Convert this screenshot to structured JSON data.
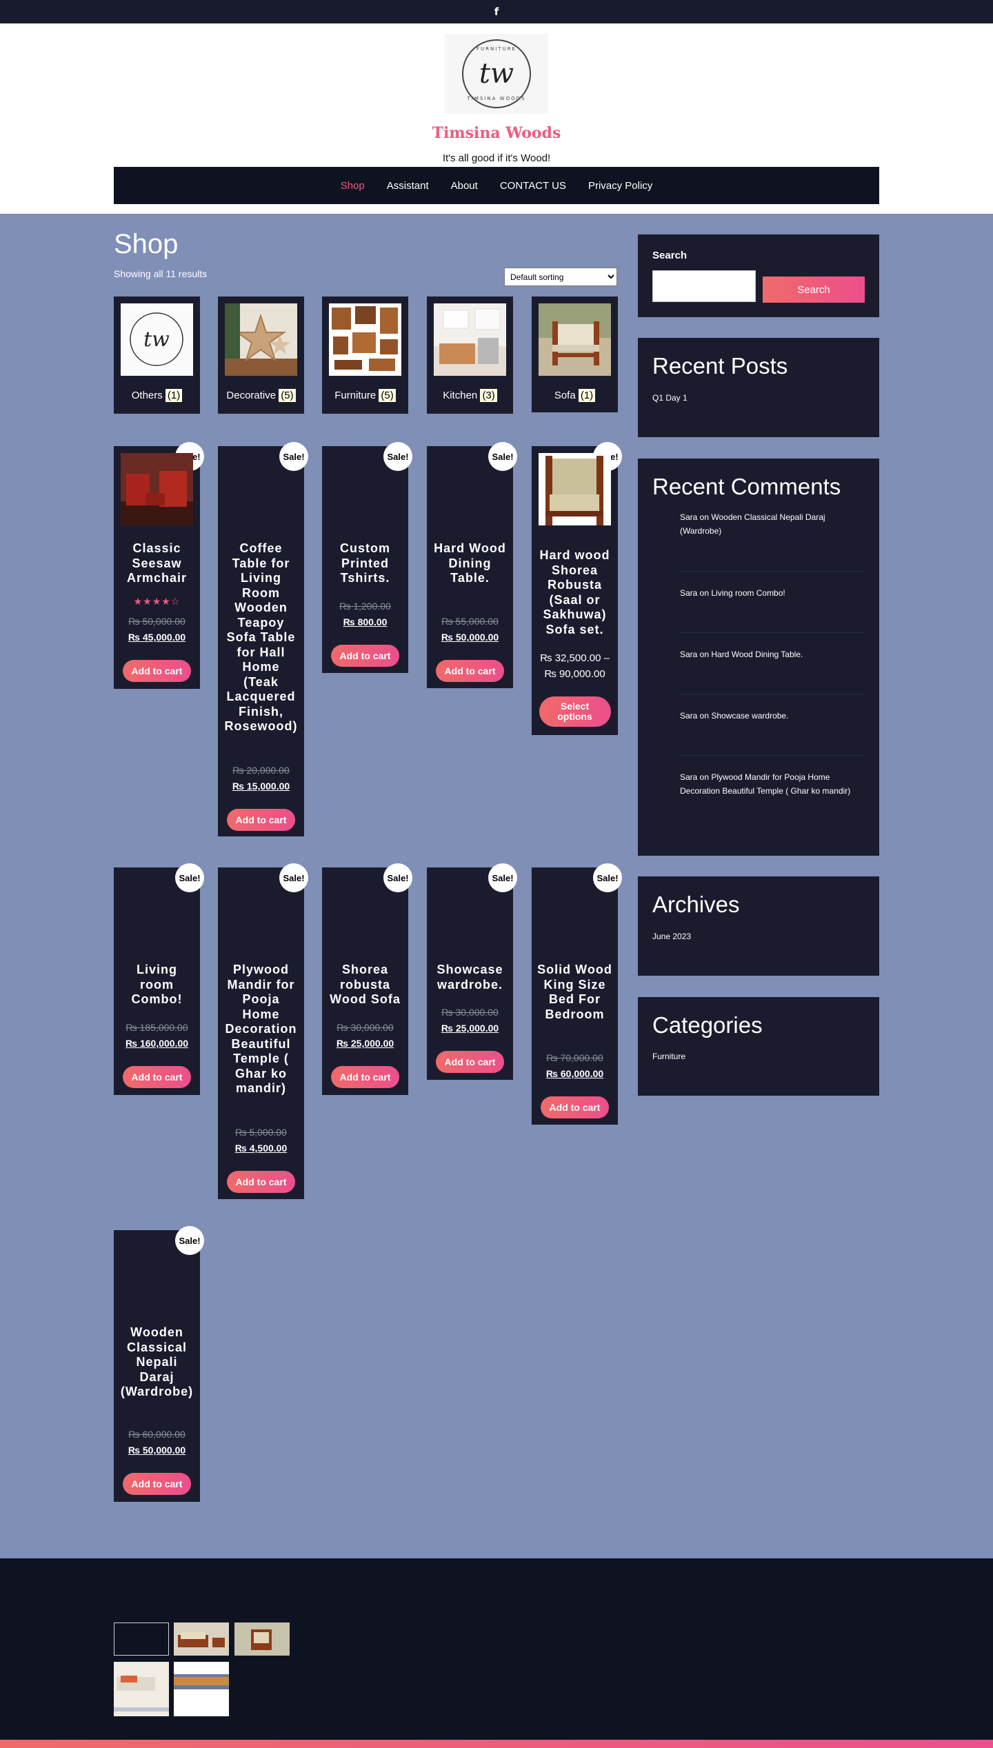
{
  "top_bar": {
    "social_icon": "facebook-icon",
    "social_glyph": "f"
  },
  "header": {
    "logo": {
      "monogram": "tw",
      "ring_top": "FURNITURE",
      "ring_bottom": "TIMSINA WOODS"
    },
    "site_title": "Timsina Woods",
    "tagline": "It's all good if it's Wood!"
  },
  "nav": [
    {
      "label": "Shop",
      "active": true
    },
    {
      "label": "Assistant",
      "active": false
    },
    {
      "label": "About",
      "active": false
    },
    {
      "label": "CONTACT US",
      "active": false
    },
    {
      "label": "Privacy Policy",
      "active": false
    }
  ],
  "shop": {
    "title": "Shop",
    "result_count": "Showing all 11 results",
    "sorting": {
      "selected": "Default sorting"
    },
    "categories": [
      {
        "name": "Others",
        "count": "(1)",
        "image": "logo"
      },
      {
        "name": "Decorative",
        "count": "(5)",
        "image": "stars"
      },
      {
        "name": "Furniture",
        "count": "(5)",
        "image": "furniture-collage"
      },
      {
        "name": "Kitchen",
        "count": "(3)",
        "image": "kitchen"
      },
      {
        "name": "Sofa",
        "count": "(1)",
        "image": "sofa"
      }
    ],
    "sale_badge": "Sale!",
    "products": [
      {
        "title": "Classic Seesaw Armchair",
        "rating": "★★★★☆",
        "rating_value": 4,
        "old_price": "₨ 50,000.00",
        "new_price": "₨ 45,000.00",
        "button": "Add to cart",
        "image": "red-chairs"
      },
      {
        "title": "Coffee Table for Living Room Wooden Teapoy Sofa Table for Hall Home (Teak Lacquered Finish, Rosewood)",
        "old_price": "₨ 20,000.00",
        "new_price": "₨ 15,000.00",
        "button": "Add to cart"
      },
      {
        "title": "Custom Printed Tshirts.",
        "old_price": "₨ 1,200.00",
        "new_price": "₨ 800.00",
        "button": "Add to cart"
      },
      {
        "title": "Hard Wood Dining Table.",
        "old_price": "₨ 55,000.00",
        "new_price": "₨ 50,000.00",
        "button": "Add to cart"
      },
      {
        "title": "Hard wood Shorea Robusta (Saal or Sakhuwa) Sofa set.",
        "price_low": "₨ 32,500.00 –",
        "price_high": "₨ 90,000.00",
        "button": "Select options",
        "image": "wood-sofa"
      },
      {
        "title": "Living room Combo!",
        "old_price": "₨ 185,000.00",
        "new_price": "₨ 160,000.00",
        "button": "Add to cart"
      },
      {
        "title": "Plywood Mandir for Pooja Home Decoration Beautiful Temple ( Ghar ko mandir)",
        "old_price": "₨ 5,000.00",
        "new_price": "₨ 4,500.00",
        "button": "Add to cart"
      },
      {
        "title": "Shorea robusta Wood Sofa",
        "old_price": "₨ 30,000.00",
        "new_price": "₨ 25,000.00",
        "button": "Add to cart"
      },
      {
        "title": "Showcase wardrobe.",
        "old_price": "₨ 30,000.00",
        "new_price": "₨ 25,000.00",
        "button": "Add to cart"
      },
      {
        "title": "Solid Wood King Size Bed For Bedroom",
        "old_price": "₨ 70,000.00",
        "new_price": "₨ 60,000.00",
        "button": "Add to cart"
      },
      {
        "title": "Wooden Classical Nepali Daraj (Wardrobe)",
        "old_price": "₨ 60,000.00",
        "new_price": "₨ 50,000.00",
        "button": "Add to cart"
      }
    ]
  },
  "sidebar": {
    "search": {
      "label": "Search",
      "button": "Search",
      "value": ""
    },
    "recent_posts": {
      "title": "Recent Posts",
      "items": [
        "Q1 Day 1"
      ]
    },
    "recent_comments": {
      "title": "Recent Comments",
      "items": [
        "Sara on Wooden Classical Nepali Daraj (Wardrobe)",
        "Sara on Living room Combo!",
        "Sara on Hard Wood Dining Table.",
        "Sara on Showcase wardrobe.",
        "Sara on Plywood Mandir for Pooja Home Decoration Beautiful Temple ( Ghar ko mandir)"
      ]
    },
    "archives": {
      "title": "Archives",
      "items": [
        "June 2023"
      ]
    },
    "categories": {
      "title": "Categories",
      "items": [
        "Furniture"
      ]
    }
  },
  "footer": {
    "gallery": [
      "empty",
      "sofa-set",
      "armchair",
      "living-room",
      "wood-slab"
    ]
  },
  "colors": {
    "accent": "#ef5a7e",
    "page_bg": "#7f8fb6",
    "panel_bg": "#1a1c2e",
    "nav_bg": "#0f1220"
  }
}
